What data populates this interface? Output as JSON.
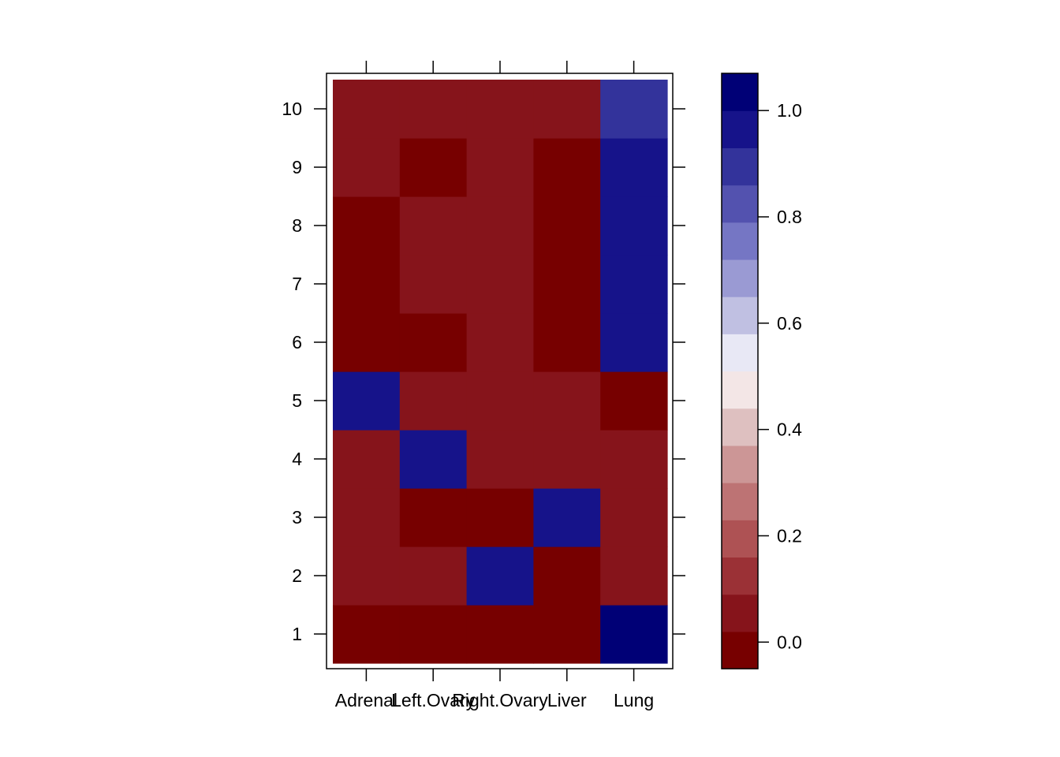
{
  "chart_data": {
    "type": "heatmap",
    "x_categories": [
      "Adrenal",
      "Left.Ovary",
      "Right.Ovary",
      "Liver",
      "Lung"
    ],
    "y_categories": [
      "1",
      "2",
      "3",
      "4",
      "5",
      "6",
      "7",
      "8",
      "9",
      "10"
    ],
    "values": [
      [
        0.0,
        0.0,
        0.0,
        0.0,
        1.0
      ],
      [
        0.02,
        0.02,
        0.98,
        0.0,
        0.02
      ],
      [
        0.02,
        0.0,
        0.0,
        0.98,
        0.02
      ],
      [
        0.02,
        0.98,
        0.02,
        0.02,
        0.02
      ],
      [
        0.98,
        0.02,
        0.02,
        0.02,
        0.0
      ],
      [
        0.0,
        0.0,
        0.02,
        0.0,
        0.98
      ],
      [
        0.0,
        0.02,
        0.02,
        0.0,
        0.98
      ],
      [
        0.0,
        0.02,
        0.02,
        0.0,
        0.98
      ],
      [
        0.02,
        0.0,
        0.02,
        0.0,
        0.98
      ],
      [
        0.02,
        0.02,
        0.02,
        0.02,
        0.92
      ]
    ],
    "colorbar": {
      "range": [
        -0.05,
        1.07
      ],
      "breaks": [
        -0.05,
        0.02,
        0.09,
        0.16,
        0.23,
        0.3,
        0.37,
        0.44,
        0.51,
        0.58,
        0.65,
        0.72,
        0.79,
        0.86,
        0.93,
        1.0,
        1.07
      ],
      "colors": [
        "#770000",
        "#86141b",
        "#9b3136",
        "#ae5254",
        "#bd7374",
        "#cc9696",
        "#dec0c0",
        "#f3e6e6",
        "#e8e8f5",
        "#c0c0e2",
        "#9a9ad3",
        "#7576c4",
        "#5352af",
        "#33339b",
        "#16138a",
        "#000076"
      ],
      "ticks": [
        0.0,
        0.2,
        0.4,
        0.6,
        0.8,
        1.0
      ],
      "tick_labels": [
        "0.0",
        "0.2",
        "0.4",
        "0.6",
        "0.8",
        "1.0"
      ]
    },
    "title": "",
    "xlabel": "",
    "ylabel": ""
  }
}
